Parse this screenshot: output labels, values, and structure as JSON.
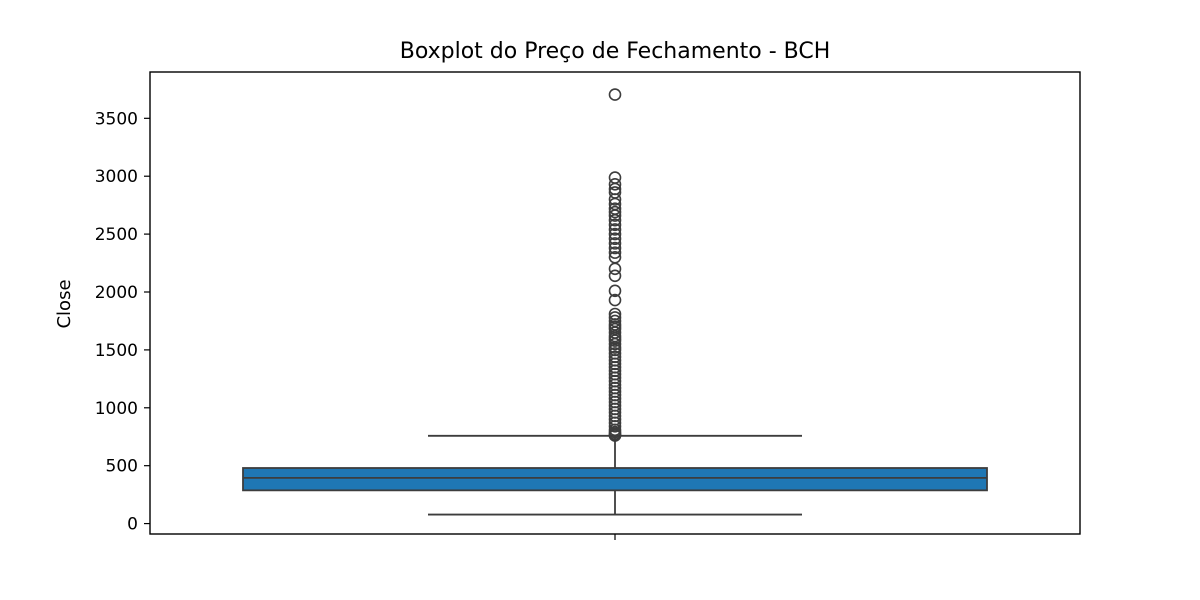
{
  "chart_data": {
    "type": "box",
    "title": "Boxplot do Preço de Fechamento - BCH",
    "xlabel": "",
    "ylabel": "Close",
    "ylim": [
      -90,
      3900
    ],
    "yticks": [
      0,
      500,
      1000,
      1500,
      2000,
      2500,
      3000,
      3500
    ],
    "grid": false,
    "legend": "none",
    "colors": {
      "box_fill": "#1f77b4",
      "line": "#3d3d3d",
      "outlier_edge": "#3d3d3d"
    },
    "box": {
      "whisker_low": 78,
      "q1": 287,
      "median": 395,
      "q3": 480,
      "whisker_high": 758
    },
    "outliers": [
      3705,
      2988,
      2930,
      2890,
      2860,
      2800,
      2760,
      2720,
      2690,
      2660,
      2620,
      2580,
      2540,
      2500,
      2460,
      2420,
      2380,
      2340,
      2300,
      2200,
      2140,
      2010,
      1930,
      1810,
      1780,
      1750,
      1720,
      1700,
      1680,
      1650,
      1620,
      1600,
      1580,
      1550,
      1520,
      1500,
      1470,
      1440,
      1410,
      1380,
      1350,
      1320,
      1290,
      1260,
      1230,
      1200,
      1170,
      1140,
      1110,
      1080,
      1050,
      1020,
      990,
      960,
      930,
      900,
      870,
      840,
      810,
      790,
      775,
      765,
      760
    ]
  }
}
